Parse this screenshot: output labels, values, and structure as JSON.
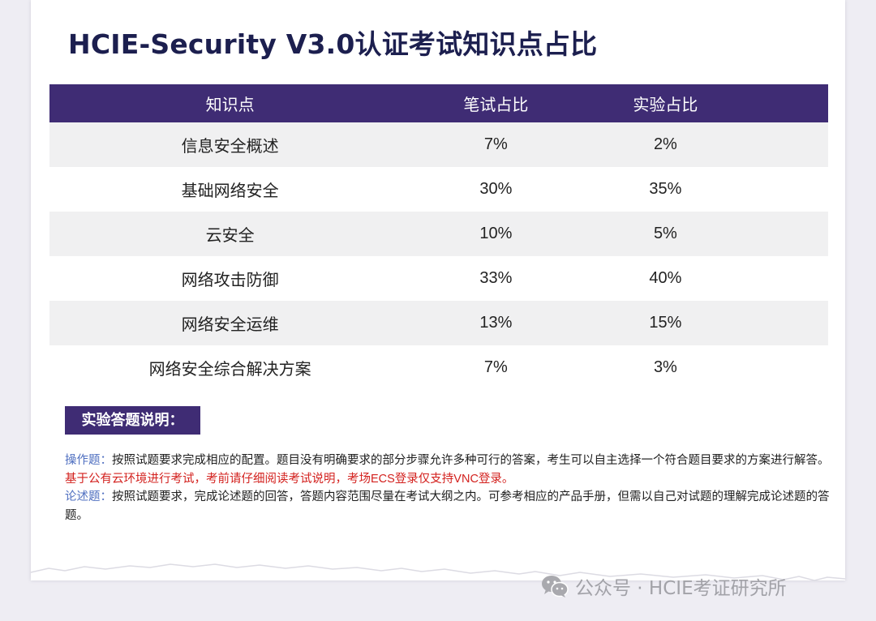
{
  "title": "HCIE-Security V3.0认证考试知识点占比",
  "table": {
    "headers": [
      "知识点",
      "笔试占比",
      "实验占比"
    ],
    "rows": [
      [
        "信息安全概述",
        "7%",
        "2%"
      ],
      [
        "基础网络安全",
        "30%",
        "35%"
      ],
      [
        "云安全",
        "10%",
        "5%"
      ],
      [
        "网络攻击防御",
        "33%",
        "40%"
      ],
      [
        "网络安全运维",
        "13%",
        "15%"
      ],
      [
        "网络安全综合解决方案",
        "7%",
        "3%"
      ]
    ]
  },
  "section_label": "实验答题说明：",
  "notes": {
    "operation_label": "操作题：",
    "operation_text": "按照试题要求完成相应的配置。题目没有明确要求的部分步骤允许多种可行的答案，考生可以自主选择一个符合题目要求的方案进行解答。",
    "operation_warning": "基于公有云环境进行考试，考前请仔细阅读考试说明，考场ECS登录仅支持VNC登录。",
    "essay_label": "论述题：",
    "essay_text": "按照试题要求，完成论述题的回答，答题内容范围尽量在考试大纲之内。可参考相应的产品手册，但需以自己对试题的理解完成论述题的答题。"
  },
  "watermark": "公众号 · HCIE考证研究所",
  "colors": {
    "header_bg": "#3f2c74",
    "title": "#1c1f4f",
    "label_blue": "#4f6fc0",
    "warning_red": "#d3211e"
  }
}
